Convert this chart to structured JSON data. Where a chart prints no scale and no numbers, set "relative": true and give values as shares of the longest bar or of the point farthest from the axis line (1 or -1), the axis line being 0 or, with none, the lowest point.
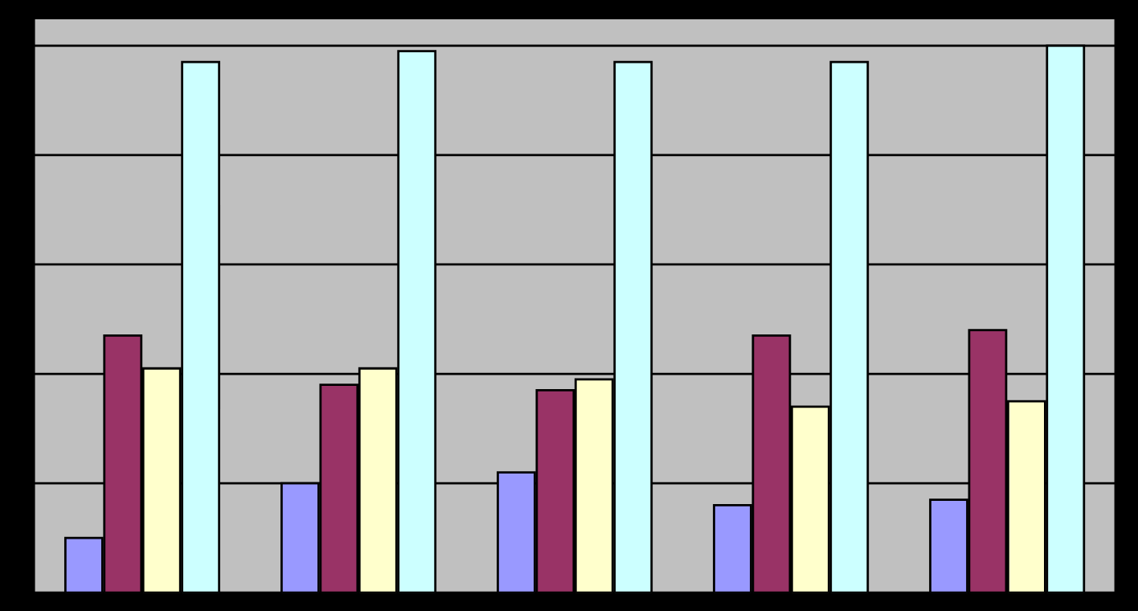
{
  "chart_data": {
    "type": "bar",
    "relative": true,
    "grid": true,
    "categories": [
      null,
      null,
      null,
      null,
      null
    ],
    "series": [
      {
        "color": "#9999ff",
        "values": [
          0.1,
          0.2,
          0.22,
          0.16,
          0.17
        ]
      },
      {
        "color": "#993366",
        "values": [
          0.47,
          0.38,
          0.37,
          0.47,
          0.48
        ]
      },
      {
        "color": "#ffffcc",
        "values": [
          0.41,
          0.41,
          0.39,
          0.34,
          0.35
        ]
      },
      {
        "color": "#ccffff",
        "values": [
          0.97,
          0.99,
          0.97,
          0.97,
          1.0
        ]
      }
    ]
  }
}
